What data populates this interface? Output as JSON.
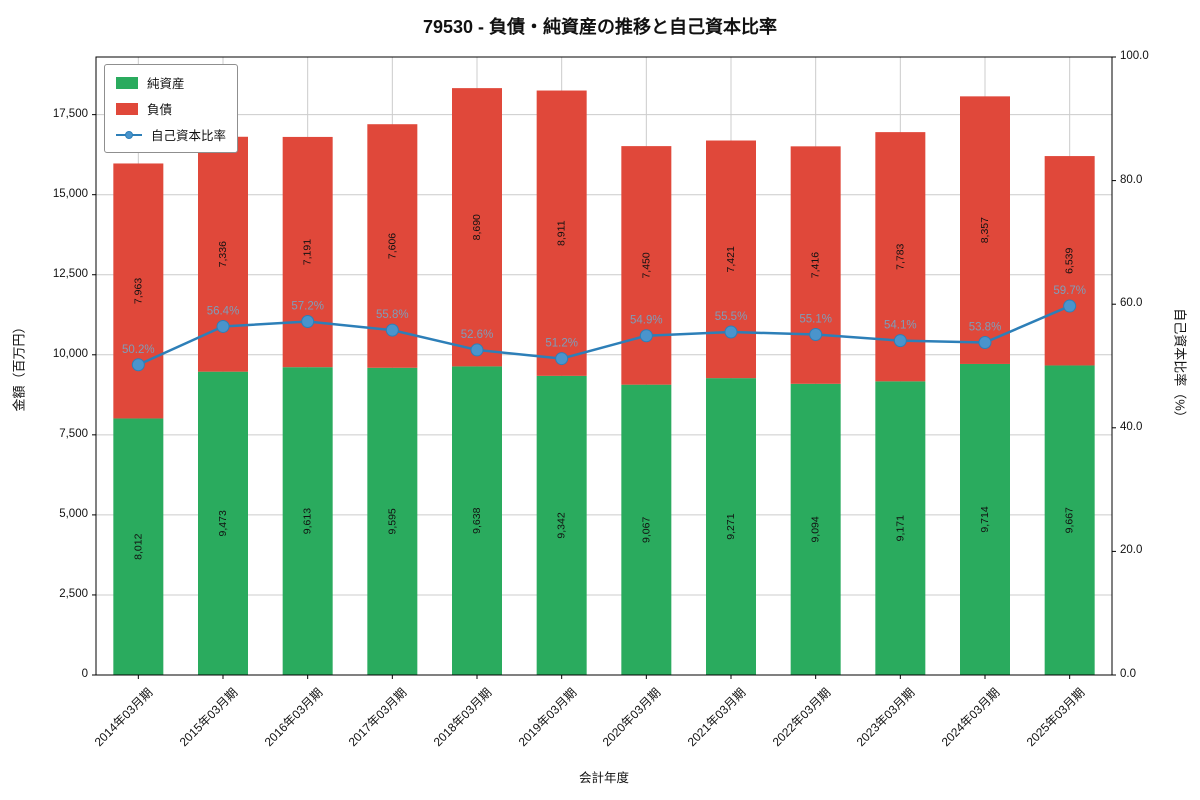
{
  "chart_data": {
    "type": "bar",
    "stacked": true,
    "title": "79530 - 負債・純資産の推移と自己資本比率",
    "xlabel": "会計年度",
    "ylabel_left": "金額（百万円）",
    "ylabel_right": "自己資本比率（%）",
    "categories": [
      "2014年03月期",
      "2015年03月期",
      "2016年03月期",
      "2017年03月期",
      "2018年03月期",
      "2019年03月期",
      "2020年03月期",
      "2021年03月期",
      "2022年03月期",
      "2023年03月期",
      "2024年03月期",
      "2025年03月期"
    ],
    "series": [
      {
        "name": "純資産",
        "color": "#2aab5e",
        "values": [
          8012,
          9473,
          9613,
          9595,
          9638,
          9342,
          9067,
          9271,
          9094,
          9171,
          9714,
          9667
        ]
      },
      {
        "name": "負債",
        "color": "#e0483a",
        "values": [
          7963,
          7336,
          7191,
          7606,
          8690,
          8911,
          7450,
          7421,
          7416,
          7783,
          8357,
          6539
        ]
      }
    ],
    "line_series": {
      "name": "自己資本比率",
      "color": "#2d7fb8",
      "marker_fill": "#4a94cc",
      "label_color": "#7f9db9",
      "values": [
        50.2,
        56.4,
        57.2,
        55.8,
        52.6,
        51.2,
        54.9,
        55.5,
        55.1,
        54.1,
        53.8,
        59.7
      ]
    },
    "ylim_left": [
      0,
      19300
    ],
    "ylim_right": [
      0,
      100
    ],
    "yticks_left": [
      0,
      2500,
      5000,
      7500,
      10000,
      12500,
      15000,
      17500
    ],
    "yticks_right": [
      0,
      20,
      40,
      60,
      80,
      100
    ],
    "grid": true,
    "grid_color": "#cccccc",
    "legend_position": "upper-left"
  }
}
